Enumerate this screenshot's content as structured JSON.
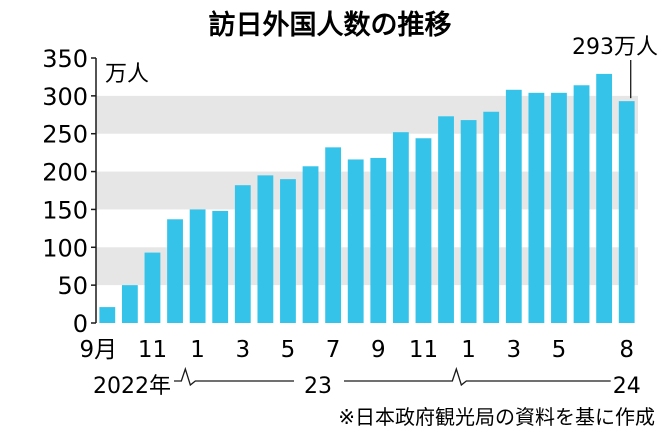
{
  "chart_data": {
    "type": "bar",
    "title": "訪日外国人数の推移",
    "unit_label": "万人",
    "ylim": [
      0,
      350
    ],
    "yticks": [
      0,
      50,
      100,
      150,
      200,
      250,
      300,
      350
    ],
    "grid": "horizontal bands",
    "bar_color": "#35c3ea",
    "band_color": "#e6e6e6",
    "categories": [
      "2022-09",
      "2022-10",
      "2022-11",
      "2022-12",
      "2023-01",
      "2023-02",
      "2023-03",
      "2023-04",
      "2023-05",
      "2023-06",
      "2023-07",
      "2023-08",
      "2023-09",
      "2023-10",
      "2023-11",
      "2023-12",
      "2024-01",
      "2024-02",
      "2024-03",
      "2024-04",
      "2024-05",
      "2024-06",
      "2024-07",
      "2024-08"
    ],
    "values": [
      21,
      50,
      93,
      137,
      150,
      148,
      182,
      195,
      190,
      207,
      232,
      216,
      218,
      252,
      244,
      273,
      268,
      279,
      308,
      304,
      304,
      314,
      329,
      293
    ],
    "x_tick_labels": [
      "9月",
      "11",
      "1",
      "3",
      "5",
      "7",
      "9",
      "11",
      "1",
      "3",
      "5",
      "8"
    ],
    "x_tick_indices": [
      0,
      2,
      4,
      6,
      8,
      10,
      12,
      14,
      16,
      18,
      20,
      23
    ],
    "year_labels": [
      "2022年",
      "23",
      "24"
    ],
    "annotation": {
      "text": "293万人",
      "index": 23
    },
    "source": "※日本政府観光局の資料を基に作成"
  }
}
